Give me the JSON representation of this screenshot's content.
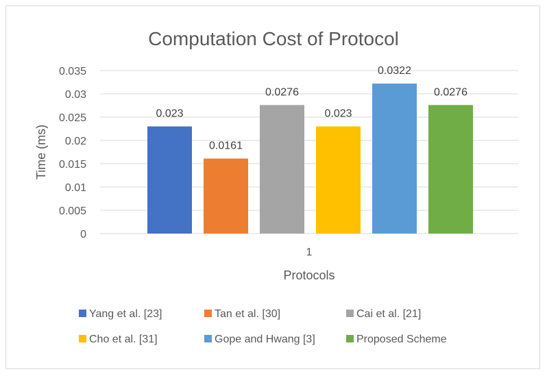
{
  "chart_data": {
    "type": "bar",
    "title": "Computation Cost of Protocol",
    "xlabel": "Protocols",
    "ylabel": "Time (ms)",
    "categories": [
      "1"
    ],
    "ylim": [
      0,
      0.035
    ],
    "yticks": [
      0,
      0.005,
      0.01,
      0.015,
      0.02,
      0.025,
      0.03,
      0.035
    ],
    "ytick_labels": [
      "0",
      "0.005",
      "0.01",
      "0.015",
      "0.02",
      "0.025",
      "0.03",
      "0.035"
    ],
    "grid": true,
    "legend_position": "bottom",
    "series": [
      {
        "name": "Yang et al. [23]",
        "values": [
          0.023
        ],
        "label": "0.023",
        "color": "#4472c4"
      },
      {
        "name": "Tan et al. [30]",
        "values": [
          0.0161
        ],
        "label": "0.0161",
        "color": "#ed7d31"
      },
      {
        "name": "Cai et al. [21]",
        "values": [
          0.0276
        ],
        "label": "0.0276",
        "color": "#a5a5a5"
      },
      {
        "name": "Cho et al. [31]",
        "values": [
          0.023
        ],
        "label": "0.023",
        "color": "#ffc000"
      },
      {
        "name": "Gope and Hwang [3]",
        "values": [
          0.0322
        ],
        "label": "0.0322",
        "color": "#5b9bd5"
      },
      {
        "name": "Proposed Scheme",
        "values": [
          0.0276
        ],
        "label": "0.0276",
        "color": "#70ad47"
      }
    ]
  }
}
